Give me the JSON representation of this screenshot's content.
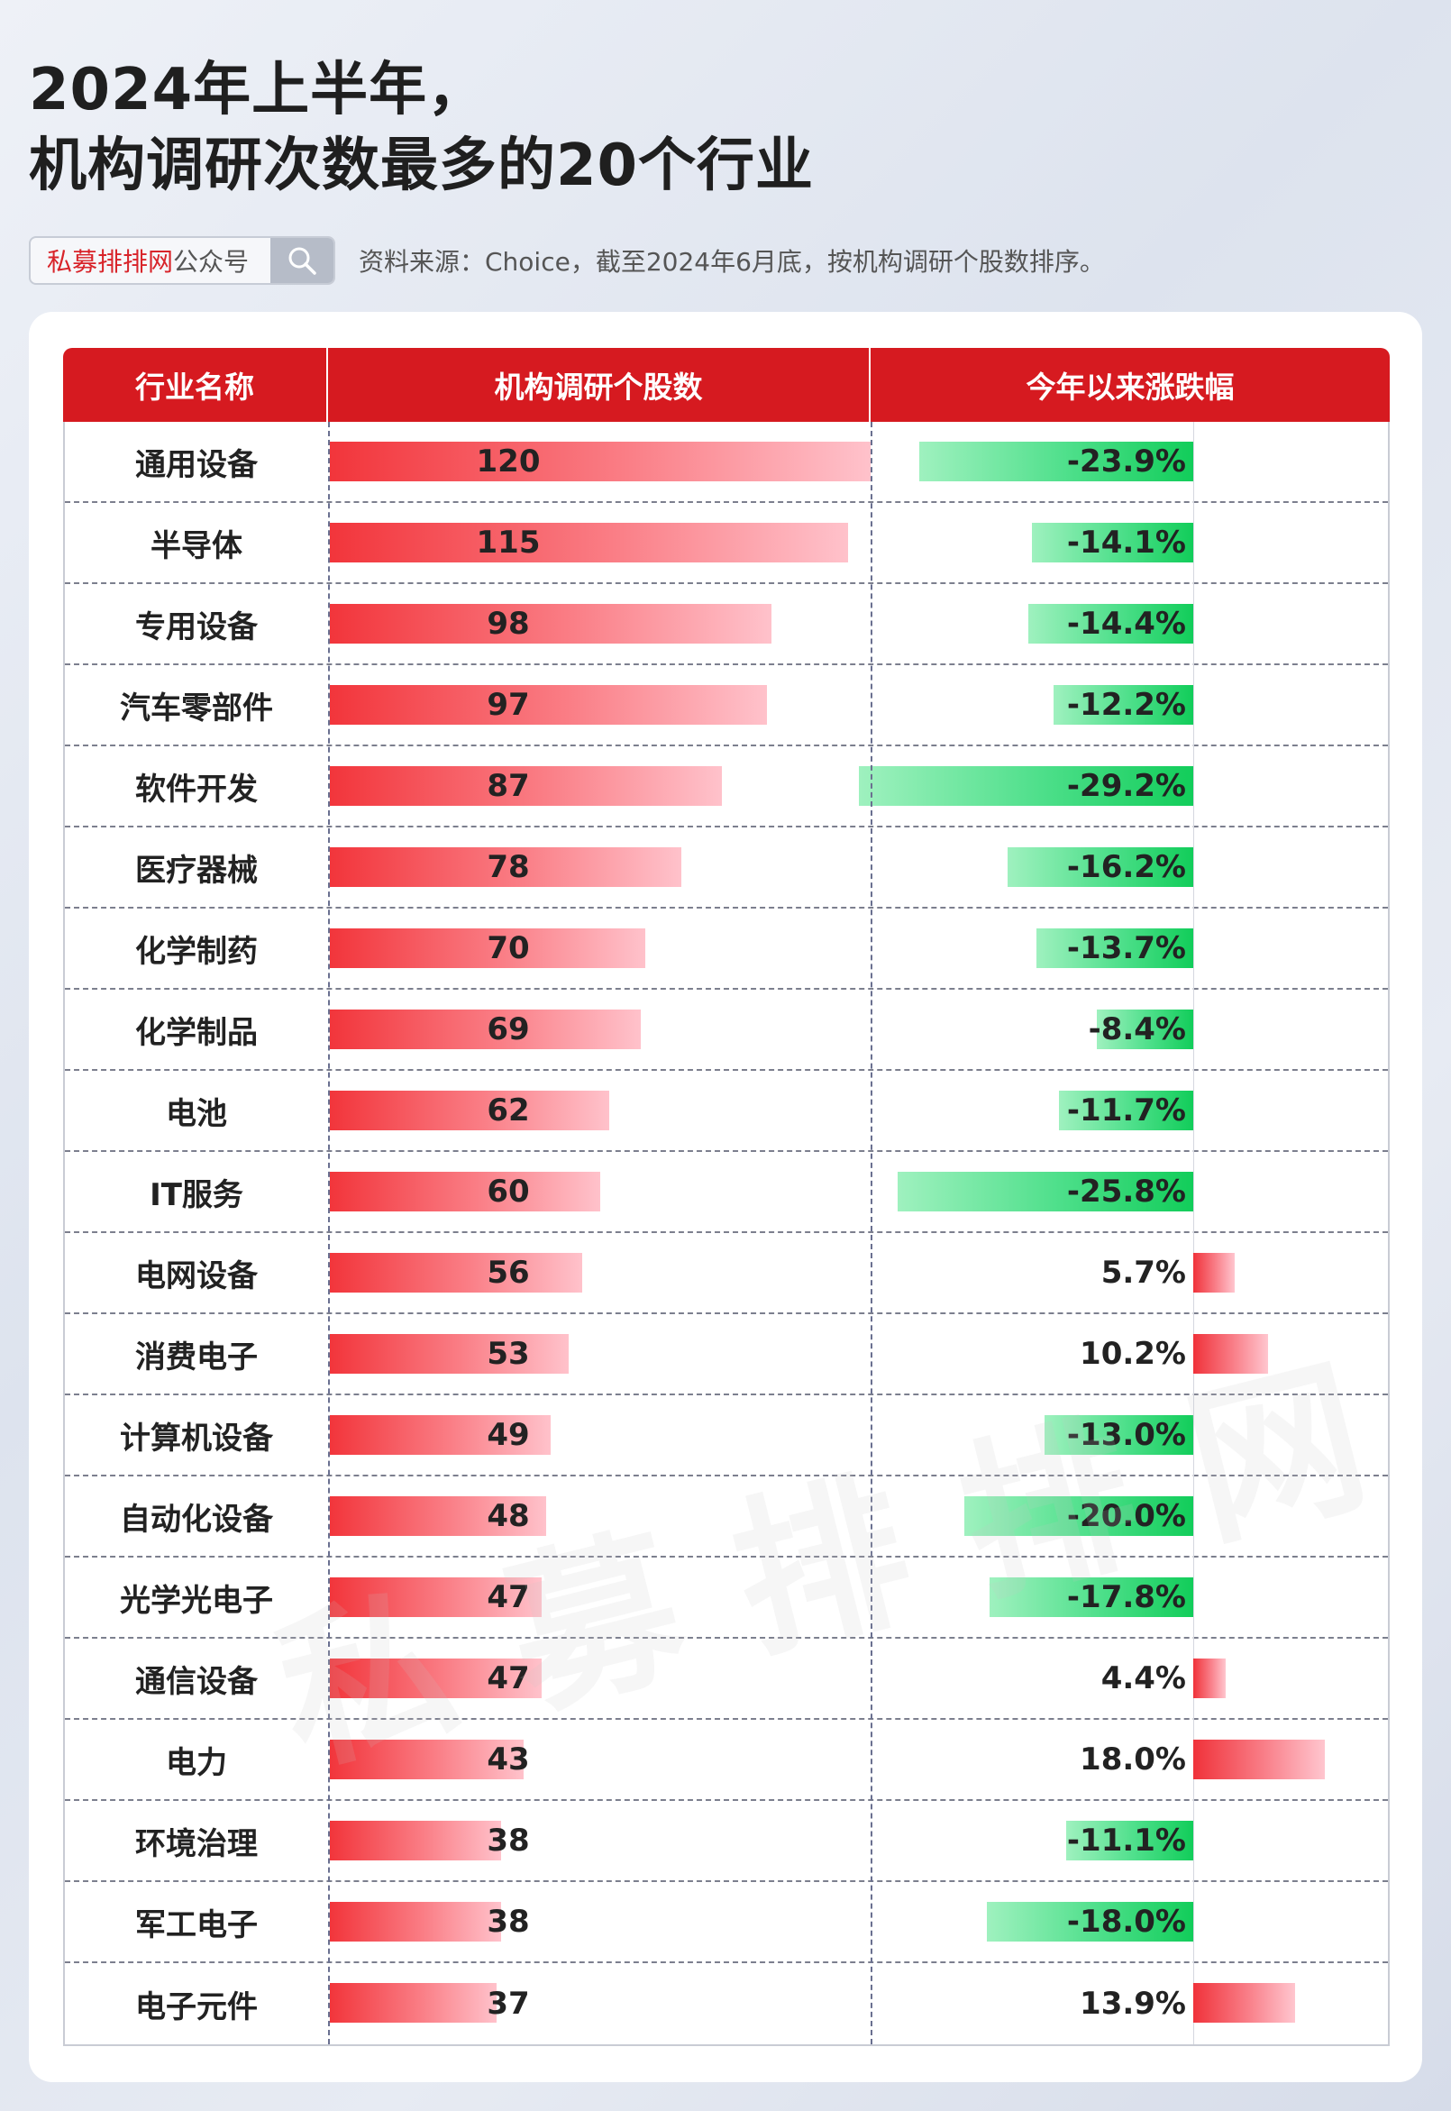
{
  "title_line1": "2024年上半年，",
  "title_line2": "机构调研次数最多的20个行业",
  "brand": {
    "name": "私募排排网",
    "suffix": "公众号"
  },
  "source_note": "资料来源：Choice，截至2024年6月底，按机构调研个股数排序。",
  "watermark": "私募排排网",
  "colors": {
    "header": "#d61a20",
    "positive": "#f2353b",
    "negative": "#12cd5a"
  },
  "chart_data": {
    "type": "table",
    "columns": [
      "行业名称",
      "机构调研个股数",
      "今年以来涨跌幅"
    ],
    "rows": [
      {
        "industry": "通用设备",
        "count": 120,
        "change": -23.9,
        "change_label": "-23.9%"
      },
      {
        "industry": "半导体",
        "count": 115,
        "change": -14.1,
        "change_label": "-14.1%"
      },
      {
        "industry": "专用设备",
        "count": 98,
        "change": -14.4,
        "change_label": "-14.4%"
      },
      {
        "industry": "汽车零部件",
        "count": 97,
        "change": -12.2,
        "change_label": "-12.2%"
      },
      {
        "industry": "软件开发",
        "count": 87,
        "change": -29.2,
        "change_label": "-29.2%"
      },
      {
        "industry": "医疗器械",
        "count": 78,
        "change": -16.2,
        "change_label": "-16.2%"
      },
      {
        "industry": "化学制药",
        "count": 70,
        "change": -13.7,
        "change_label": "-13.7%"
      },
      {
        "industry": "化学制品",
        "count": 69,
        "change": -8.4,
        "change_label": "-8.4%"
      },
      {
        "industry": "电池",
        "count": 62,
        "change": -11.7,
        "change_label": "-11.7%"
      },
      {
        "industry": "IT服务",
        "count": 60,
        "change": -25.8,
        "change_label": "-25.8%"
      },
      {
        "industry": "电网设备",
        "count": 56,
        "change": 5.7,
        "change_label": "5.7%"
      },
      {
        "industry": "消费电子",
        "count": 53,
        "change": 10.2,
        "change_label": "10.2%"
      },
      {
        "industry": "计算机设备",
        "count": 49,
        "change": -13.0,
        "change_label": "-13.0%"
      },
      {
        "industry": "自动化设备",
        "count": 48,
        "change": -20.0,
        "change_label": "-20.0%"
      },
      {
        "industry": "光学光电子",
        "count": 47,
        "change": -17.8,
        "change_label": "-17.8%"
      },
      {
        "industry": "通信设备",
        "count": 47,
        "change": 4.4,
        "change_label": "4.4%"
      },
      {
        "industry": "电力",
        "count": 43,
        "change": 18.0,
        "change_label": "18.0%"
      },
      {
        "industry": "环境治理",
        "count": 38,
        "change": -11.1,
        "change_label": "-11.1%"
      },
      {
        "industry": "军工电子",
        "count": 38,
        "change": -18.0,
        "change_label": "-18.0%"
      },
      {
        "industry": "电子元件",
        "count": 37,
        "change": 13.9,
        "change_label": "13.9%"
      }
    ]
  }
}
